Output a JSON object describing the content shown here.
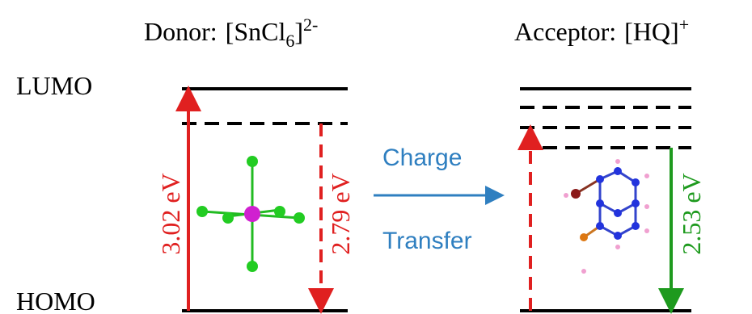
{
  "donor": {
    "label": "Donor:",
    "formula": "[SnCl",
    "subscript": "6",
    "close": "]",
    "charge": "2-"
  },
  "acceptor": {
    "label": "Acceptor:",
    "formula": "[HQ]",
    "charge": "+"
  },
  "levels": {
    "lumo": "LUMO",
    "homo": "HOMO"
  },
  "transitions": {
    "donor_absorption": "3.02 eV",
    "donor_emission": "2.79 eV",
    "acceptor_emission": "2.53 eV"
  },
  "transfer": {
    "line1": "Charge",
    "line2": "Transfer"
  }
}
